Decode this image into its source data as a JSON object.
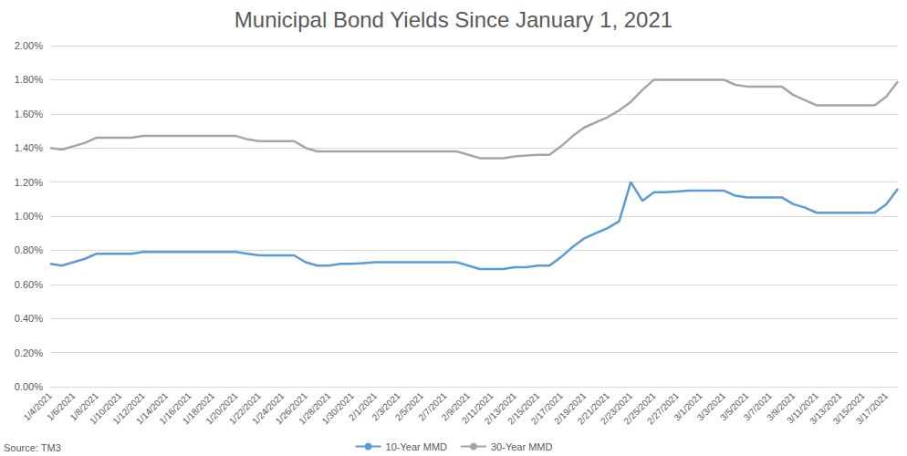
{
  "chart_data": {
    "type": "line",
    "title": "Municipal Bond Yields Since January 1, 2021",
    "source": "Source: TM3",
    "categories": [
      "1/4/2021",
      null,
      "1/6/2021",
      null,
      "1/8/2021",
      null,
      "1/10/2021",
      null,
      "1/12/2021",
      null,
      "1/14/2021",
      null,
      "1/16/2021",
      null,
      "1/18/2021",
      null,
      "1/20/2021",
      null,
      "1/22/2021",
      null,
      "1/24/2021",
      null,
      "1/26/2021",
      null,
      "1/28/2021",
      null,
      "1/30/2021",
      null,
      "2/1/2021",
      null,
      "2/3/2021",
      null,
      "2/5/2021",
      null,
      "2/7/2021",
      null,
      "2/9/2021",
      null,
      "2/11/2021",
      null,
      "2/13/2021",
      null,
      "2/15/2021",
      null,
      "2/17/2021",
      null,
      "2/19/2021",
      null,
      "2/21/2021",
      null,
      "2/23/2021",
      null,
      "2/25/2021",
      null,
      "2/27/2021",
      null,
      "3/1/2021",
      null,
      "3/3/2021",
      null,
      "3/5/2021",
      null,
      "3/7/2021",
      null,
      "3/9/2021",
      null,
      "3/11/2021",
      null,
      "3/13/2021",
      null,
      "3/15/2021",
      null,
      "3/17/2021",
      null
    ],
    "series": [
      {
        "name": "10-Year MMD",
        "color": "#5b9bd5",
        "values": [
          0.72,
          0.71,
          0.73,
          0.75,
          0.78,
          0.78,
          0.78,
          0.78,
          0.79,
          0.79,
          0.79,
          0.79,
          0.79,
          0.79,
          0.79,
          0.79,
          0.79,
          0.78,
          0.77,
          0.77,
          0.77,
          0.77,
          0.73,
          0.71,
          0.71,
          0.72,
          0.72,
          0.725,
          0.73,
          0.73,
          0.73,
          0.73,
          0.73,
          0.73,
          0.73,
          0.73,
          0.71,
          0.69,
          0.69,
          0.69,
          0.7,
          0.7,
          0.71,
          0.71,
          0.76,
          0.82,
          0.87,
          0.9,
          0.93,
          0.97,
          1.2,
          1.09,
          1.14,
          1.14,
          1.145,
          1.15,
          1.15,
          1.15,
          1.15,
          1.12,
          1.11,
          1.11,
          1.11,
          1.11,
          1.07,
          1.05,
          1.02,
          1.02,
          1.02,
          1.02,
          1.02,
          1.02,
          1.07,
          1.16
        ]
      },
      {
        "name": "30-Year MMD",
        "color": "#a5a5a5",
        "values": [
          1.4,
          1.39,
          1.41,
          1.43,
          1.46,
          1.46,
          1.46,
          1.46,
          1.47,
          1.47,
          1.47,
          1.47,
          1.47,
          1.47,
          1.47,
          1.47,
          1.47,
          1.45,
          1.44,
          1.44,
          1.44,
          1.44,
          1.4,
          1.38,
          1.38,
          1.38,
          1.38,
          1.38,
          1.38,
          1.38,
          1.38,
          1.38,
          1.38,
          1.38,
          1.38,
          1.38,
          1.36,
          1.34,
          1.34,
          1.34,
          1.35,
          1.355,
          1.36,
          1.36,
          1.41,
          1.47,
          1.52,
          1.55,
          1.58,
          1.62,
          1.67,
          1.74,
          1.8,
          1.8,
          1.8,
          1.8,
          1.8,
          1.8,
          1.8,
          1.77,
          1.76,
          1.76,
          1.76,
          1.76,
          1.71,
          1.68,
          1.65,
          1.65,
          1.65,
          1.65,
          1.65,
          1.65,
          1.7,
          1.79
        ]
      }
    ],
    "ylim": [
      0,
      2
    ],
    "yticks": [
      {
        "value": 0,
        "label": "0.00%"
      },
      {
        "value": 0.2,
        "label": "0.20%"
      },
      {
        "value": 0.4,
        "label": "0.40%"
      },
      {
        "value": 0.6,
        "label": "0.60%"
      },
      {
        "value": 0.8,
        "label": "0.80%"
      },
      {
        "value": 1.0,
        "label": "1.00%"
      },
      {
        "value": 1.2,
        "label": "1.20%"
      },
      {
        "value": 1.4,
        "label": "1.40%"
      },
      {
        "value": 1.6,
        "label": "1.60%"
      },
      {
        "value": 1.8,
        "label": "1.80%"
      },
      {
        "value": 2.0,
        "label": "2.00%"
      }
    ],
    "grid": true,
    "legend": "bottom"
  }
}
